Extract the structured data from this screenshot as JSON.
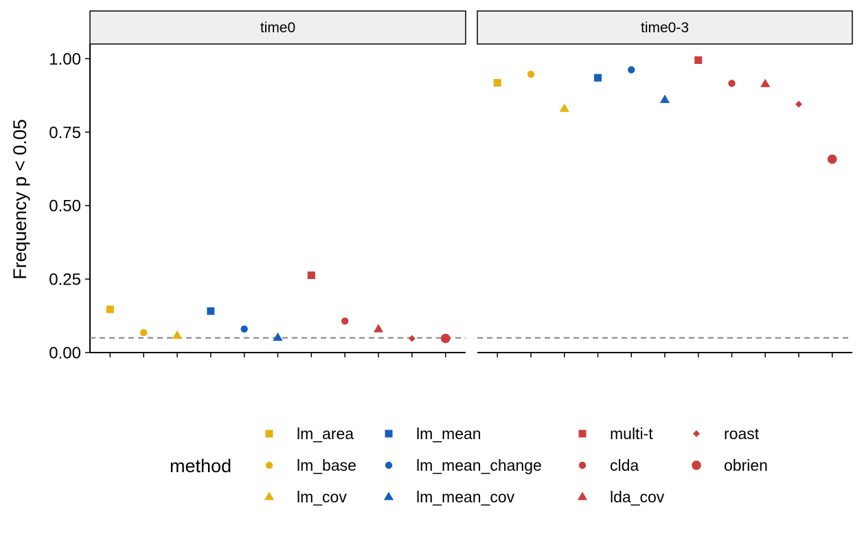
{
  "chart_data": {
    "type": "scatter",
    "ylabel": "Frequency p < 0.05",
    "xlabel": "",
    "ylim": [
      0,
      1.05
    ],
    "yticks": [
      "0.00",
      "0.25",
      "0.50",
      "0.75",
      "1.00"
    ],
    "reference_line": {
      "y": 0.05,
      "style": "dashed",
      "color": "#808080"
    },
    "facets": [
      "time0",
      "time0-3"
    ],
    "methods": [
      "lm_area",
      "lm_base",
      "lm_cov",
      "lm_mean",
      "lm_mean_change",
      "lm_mean_cov",
      "multi-t",
      "clda",
      "lda_cov",
      "roast",
      "obrien"
    ],
    "legend": {
      "title": "method",
      "position": "bottom",
      "entries": [
        {
          "label": "lm_area",
          "color": "#E6B010",
          "shape": "square"
        },
        {
          "label": "lm_base",
          "color": "#E6B010",
          "shape": "circle"
        },
        {
          "label": "lm_cov",
          "color": "#E6B010",
          "shape": "triangle"
        },
        {
          "label": "lm_mean",
          "color": "#1560BD",
          "shape": "square"
        },
        {
          "label": "lm_mean_change",
          "color": "#1560BD",
          "shape": "circle"
        },
        {
          "label": "lm_mean_cov",
          "color": "#1560BD",
          "shape": "triangle"
        },
        {
          "label": "multi-t",
          "color": "#CC3D3D",
          "shape": "square"
        },
        {
          "label": "clda",
          "color": "#CC3D3D",
          "shape": "circle"
        },
        {
          "label": "lda_cov",
          "color": "#CC3D3D",
          "shape": "triangle"
        },
        {
          "label": "roast",
          "color": "#CC3D3D",
          "shape": "diamond"
        },
        {
          "label": "obrien",
          "color": "#CC3D3D",
          "shape": "circle-large"
        }
      ]
    },
    "series": [
      {
        "facet": "time0",
        "values": [
          0.147,
          0.068,
          0.058,
          0.141,
          0.08,
          0.051,
          0.263,
          0.107,
          0.08,
          0.048,
          0.048
        ]
      },
      {
        "facet": "time0-3",
        "values": [
          0.918,
          0.947,
          0.83,
          0.935,
          0.962,
          0.86,
          0.995,
          0.916,
          0.914,
          0.845,
          0.658
        ]
      }
    ]
  }
}
